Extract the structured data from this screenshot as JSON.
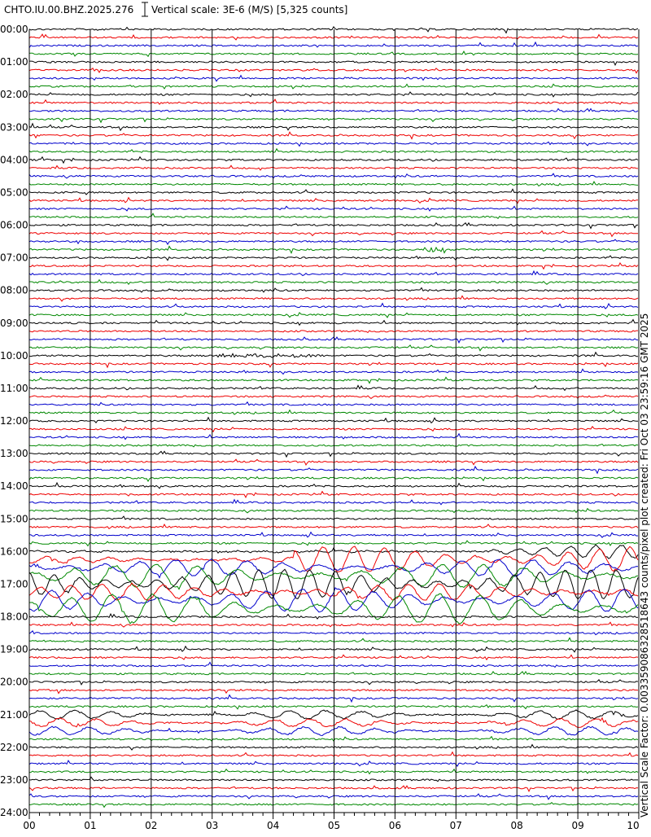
{
  "header": {
    "station": "CHTO.IU.00.BHZ.2025.276",
    "scale": "Vertical scale: 3E-6 (M/S) [5,325 counts]"
  },
  "y_labels": [
    "00:00",
    "01:00",
    "02:00",
    "03:00",
    "04:00",
    "05:00",
    "06:00",
    "07:00",
    "08:00",
    "09:00",
    "10:00",
    "11:00",
    "12:00",
    "13:00",
    "14:00",
    "15:00",
    "16:00",
    "17:00",
    "18:00",
    "19:00",
    "20:00",
    "21:00",
    "22:00",
    "23:00",
    "24:00"
  ],
  "x_labels": [
    "00",
    "01",
    "02",
    "03",
    "04",
    "05",
    "06",
    "07",
    "08",
    "09",
    "10"
  ],
  "side_text": "Vertical Scale Factor: 0.003359086328518643 counts/pixel plot created: Fri Oct 03 23:59:16 GMT 2025"
}
